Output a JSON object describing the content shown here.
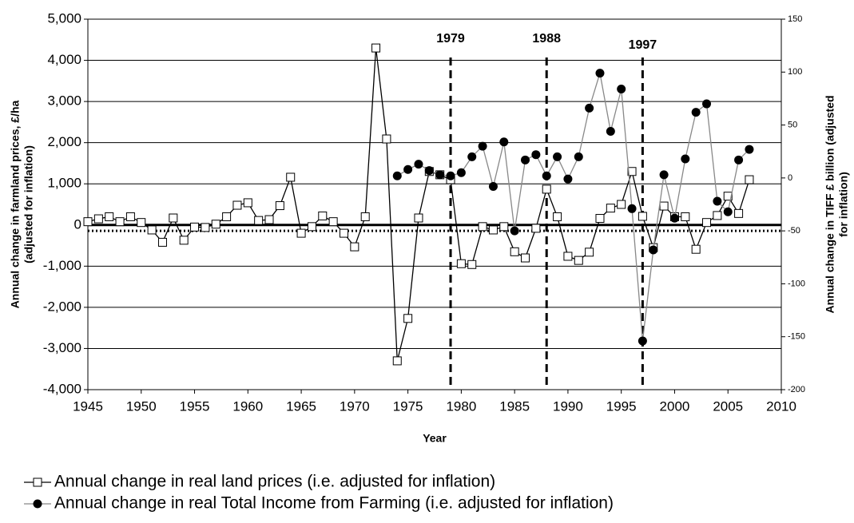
{
  "chart_data": {
    "type": "line",
    "x_label": "Year",
    "y_label": [
      "Annual change in farmland prices, £/ha",
      "(adjusted for inflation)"
    ],
    "y2_label": [
      "Annual change in TIFF £ billion (adjusted",
      "for inflation)"
    ],
    "xlim": [
      1945,
      2010
    ],
    "xticks": [
      1945,
      1950,
      1955,
      1960,
      1965,
      1970,
      1975,
      1980,
      1985,
      1990,
      1995,
      2000,
      2005,
      2010
    ],
    "ylim": [
      -4000,
      5000
    ],
    "yticks": [
      {
        "value": -4000,
        "label": "-4,000"
      },
      {
        "value": -3000,
        "label": "-3,000"
      },
      {
        "value": -2000,
        "label": "-2,000"
      },
      {
        "value": -1000,
        "label": "-1,000"
      },
      0,
      {
        "value": 1000,
        "label": "1,000"
      },
      {
        "value": 2000,
        "label": "2,000"
      },
      {
        "value": 3000,
        "label": "3,000"
      },
      {
        "value": 4000,
        "label": "4,000"
      },
      {
        "value": 5000,
        "label": "5,000"
      }
    ],
    "y2lim": [
      -200,
      150
    ],
    "y2ticks": [
      -200,
      -150,
      -100,
      -50,
      0,
      50,
      100,
      150
    ],
    "grid": true,
    "y2_refline": -50,
    "vlines": [
      1979,
      1988,
      1997
    ],
    "series": [
      {
        "name": "Annual change in real land prices (i.e. adjusted for inflation)",
        "color": "#000000",
        "marker": "square",
        "x": [
          1945,
          1946,
          1947,
          1948,
          1949,
          1950,
          1951,
          1952,
          1953,
          1954,
          1955,
          1956,
          1957,
          1958,
          1959,
          1960,
          1961,
          1962,
          1963,
          1964,
          1965,
          1966,
          1967,
          1968,
          1969,
          1970,
          1971,
          1972,
          1973,
          1974,
          1975,
          1976,
          1977,
          1978,
          1979,
          1980,
          1981,
          1982,
          1983,
          1984,
          1985,
          1986,
          1987,
          1988,
          1989,
          1990,
          1991,
          1992,
          1993,
          1994,
          1995,
          1996,
          1997,
          1998,
          1999,
          2000,
          2001,
          2002,
          2003,
          2004,
          2005,
          2006,
          2007
        ],
        "values": [
          80,
          150,
          200,
          80,
          200,
          60,
          -120,
          -420,
          170,
          -370,
          -50,
          -60,
          20,
          200,
          480,
          540,
          110,
          130,
          470,
          1160,
          -200,
          -40,
          220,
          80,
          -200,
          -530,
          200,
          4300,
          2090,
          -3300,
          -2270,
          170,
          1300,
          1220,
          1100,
          -940,
          -960,
          -40,
          -120,
          -40,
          -650,
          -800,
          -80,
          870,
          200,
          -760,
          -860,
          -660,
          160,
          410,
          500,
          1300,
          210,
          -550,
          460,
          200,
          200,
          -590,
          60,
          230,
          700,
          280,
          1100
        ]
      },
      {
        "name": "Annual change in real Total Income from Farming (i.e. adjusted for inflation)",
        "color": "#888888",
        "marker": "circle",
        "axis": "y2",
        "x": [
          1974,
          1975,
          1976,
          1977,
          1978,
          1979,
          1980,
          1981,
          1982,
          1983,
          1984,
          1985,
          1986,
          1987,
          1988,
          1989,
          1990,
          1991,
          1992,
          1993,
          1994,
          1995,
          1996,
          1997,
          1998,
          1999,
          2000,
          2001,
          2002,
          2003,
          2004,
          2005,
          2006,
          2007
        ],
        "values": [
          2,
          8,
          13,
          7,
          3,
          2,
          5,
          20,
          30,
          -8,
          34,
          -50,
          17,
          22,
          2,
          20,
          -1,
          20,
          66,
          99,
          44,
          84,
          -29,
          -154,
          -68,
          3,
          -38,
          18,
          62,
          70,
          -22,
          -32,
          17,
          27
        ]
      }
    ]
  }
}
